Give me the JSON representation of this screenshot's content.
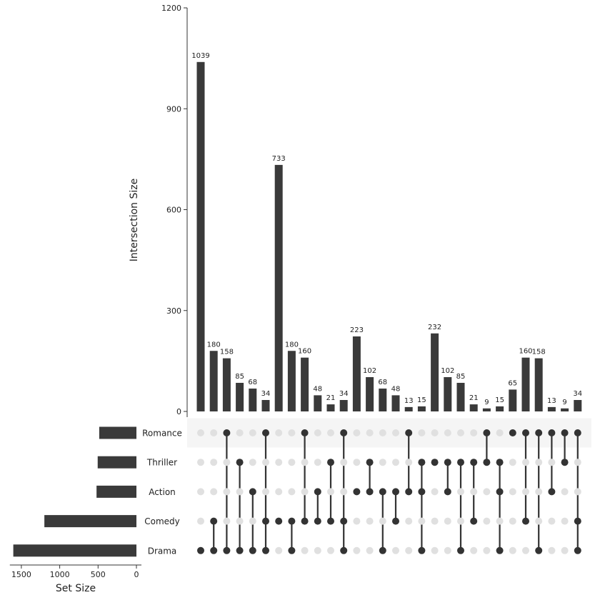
{
  "chart_data": {
    "type": "upset",
    "ylabel": "Intersection Size",
    "set_size_label": "Set Size",
    "ylim": [
      0,
      1200
    ],
    "yticks": [
      0,
      300,
      600,
      900,
      1200
    ],
    "set_size_xticks": [
      1500,
      1000,
      500,
      0
    ],
    "sets": [
      {
        "name": "Romance",
        "size": 485
      },
      {
        "name": "Thriller",
        "size": 505
      },
      {
        "name": "Action",
        "size": 520
      },
      {
        "name": "Comedy",
        "size": 1200
      },
      {
        "name": "Drama",
        "size": 1605
      }
    ],
    "intersections": [
      {
        "value": 1039,
        "members": [
          "Drama"
        ]
      },
      {
        "value": 180,
        "members": [
          "Comedy",
          "Drama"
        ]
      },
      {
        "value": 158,
        "members": [
          "Romance",
          "Drama"
        ]
      },
      {
        "value": 85,
        "members": [
          "Thriller",
          "Drama"
        ]
      },
      {
        "value": 68,
        "members": [
          "Action",
          "Drama"
        ]
      },
      {
        "value": 34,
        "members": [
          "Romance",
          "Comedy",
          "Drama"
        ]
      },
      {
        "value": 733,
        "members": [
          "Comedy"
        ]
      },
      {
        "value": 180,
        "members": [
          "Comedy",
          "Drama"
        ]
      },
      {
        "value": 160,
        "members": [
          "Romance",
          "Comedy"
        ]
      },
      {
        "value": 48,
        "members": [
          "Action",
          "Comedy"
        ]
      },
      {
        "value": 21,
        "members": [
          "Thriller",
          "Comedy"
        ]
      },
      {
        "value": 34,
        "members": [
          "Romance",
          "Comedy",
          "Drama"
        ]
      },
      {
        "value": 223,
        "members": [
          "Action"
        ]
      },
      {
        "value": 102,
        "members": [
          "Thriller",
          "Action"
        ]
      },
      {
        "value": 68,
        "members": [
          "Action",
          "Drama"
        ]
      },
      {
        "value": 48,
        "members": [
          "Action",
          "Comedy"
        ]
      },
      {
        "value": 13,
        "members": [
          "Romance",
          "Action"
        ]
      },
      {
        "value": 15,
        "members": [
          "Thriller",
          "Action",
          "Drama"
        ]
      },
      {
        "value": 232,
        "members": [
          "Thriller"
        ]
      },
      {
        "value": 102,
        "members": [
          "Thriller",
          "Action"
        ]
      },
      {
        "value": 85,
        "members": [
          "Thriller",
          "Drama"
        ]
      },
      {
        "value": 21,
        "members": [
          "Thriller",
          "Comedy"
        ]
      },
      {
        "value": 9,
        "members": [
          "Romance",
          "Thriller"
        ]
      },
      {
        "value": 15,
        "members": [
          "Thriller",
          "Action",
          "Drama"
        ]
      },
      {
        "value": 65,
        "members": [
          "Romance"
        ]
      },
      {
        "value": 160,
        "members": [
          "Romance",
          "Comedy"
        ]
      },
      {
        "value": 158,
        "members": [
          "Romance",
          "Drama"
        ]
      },
      {
        "value": 13,
        "members": [
          "Romance",
          "Action"
        ]
      },
      {
        "value": 9,
        "members": [
          "Romance",
          "Thriller"
        ]
      },
      {
        "value": 34,
        "members": [
          "Romance",
          "Comedy",
          "Drama"
        ]
      }
    ],
    "colors": {
      "bar": "#3a3a3a",
      "dot_active": "#333333",
      "dot_inactive": "#e0e0e0",
      "stripe": "#f5f5f5",
      "axis": "#333333"
    }
  }
}
